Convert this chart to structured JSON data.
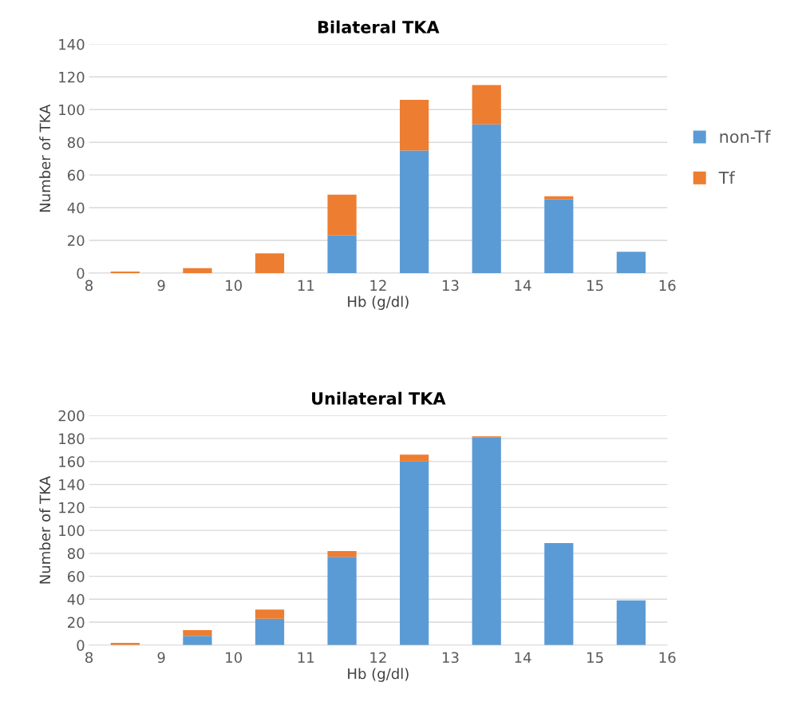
{
  "chart_data": [
    {
      "type": "bar",
      "title": "Bilateral TKA",
      "xlabel": "Hb (g/dl)",
      "ylabel": "Number of TKA",
      "stacked": true,
      "x": [
        8.5,
        9.5,
        10.5,
        11.5,
        12.5,
        13.5,
        14.5,
        15.5
      ],
      "series": [
        {
          "name": "non-Tf",
          "color": "#5b9bd5",
          "values": [
            0,
            0,
            0,
            23,
            75,
            91,
            45,
            13
          ]
        },
        {
          "name": "Tf",
          "color": "#ed7d31",
          "values": [
            1,
            3,
            12,
            25,
            31,
            24,
            2,
            0
          ]
        }
      ],
      "xlim": [
        8,
        16
      ],
      "xticks": [
        8,
        9,
        10,
        11,
        12,
        13,
        14,
        15,
        16
      ],
      "ylim": [
        0,
        140
      ],
      "yticks": [
        0,
        20,
        40,
        60,
        80,
        100,
        120,
        140
      ],
      "grid": "y",
      "legend": "right"
    },
    {
      "type": "bar",
      "title": "Unilateral TKA",
      "xlabel": "Hb (g/dl)",
      "ylabel": "Number of TKA",
      "stacked": true,
      "x": [
        8.5,
        9.5,
        10.5,
        11.5,
        12.5,
        13.5,
        14.5,
        15.5
      ],
      "series": [
        {
          "color": "#5b9bd5",
          "values": [
            0,
            8,
            23,
            77,
            160,
            181,
            89,
            39
          ]
        },
        {
          "color": "#ed7d31",
          "values": [
            2,
            5,
            8,
            5,
            6,
            1,
            0,
            0
          ]
        }
      ],
      "xlim": [
        8,
        16
      ],
      "xticks": [
        8,
        9,
        10,
        11,
        12,
        13,
        14,
        15,
        16
      ],
      "ylim": [
        0,
        200
      ],
      "yticks": [
        0,
        20,
        40,
        60,
        80,
        100,
        120,
        140,
        160,
        180,
        200
      ],
      "grid": "y"
    }
  ]
}
